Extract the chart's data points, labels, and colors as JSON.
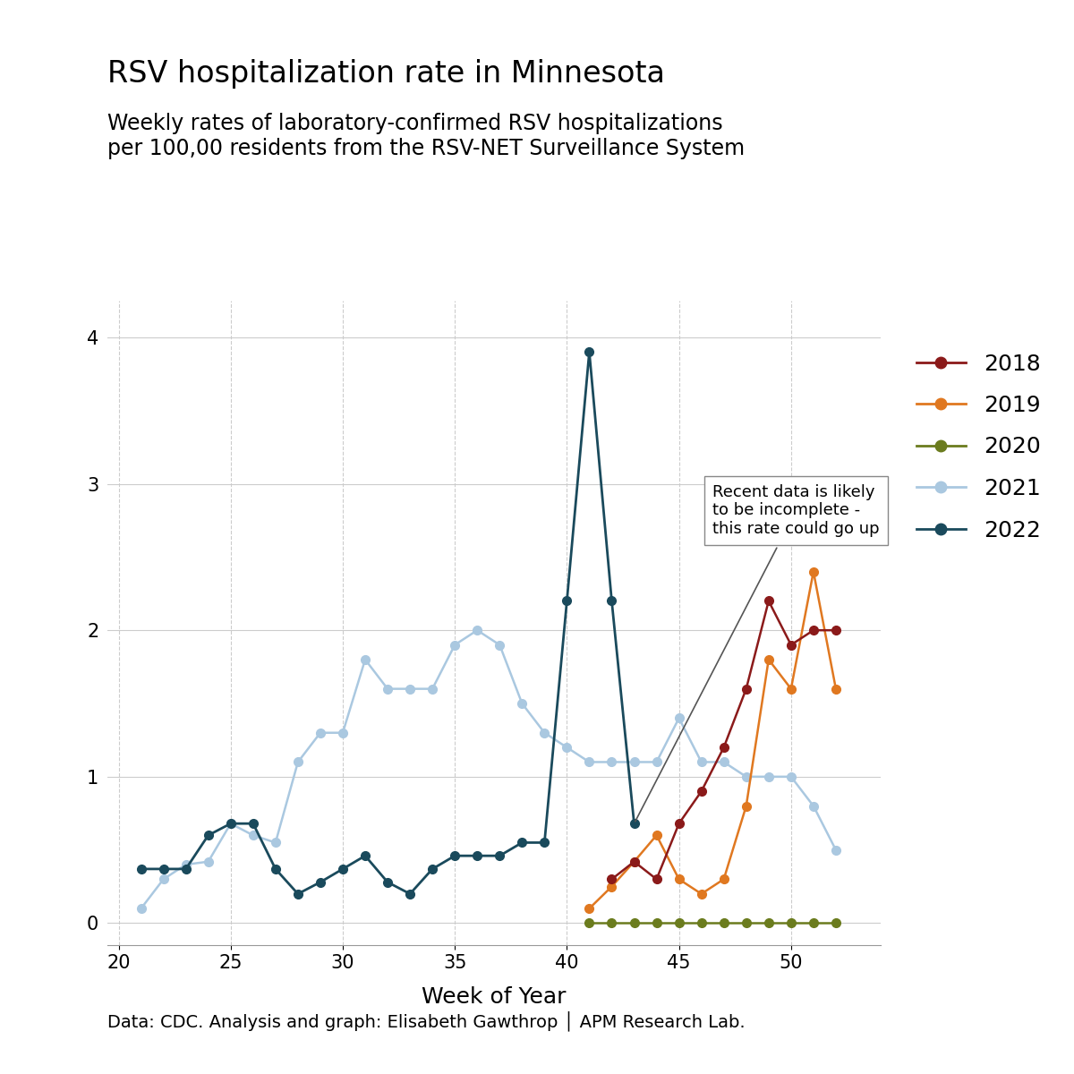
{
  "title": "RSV hospitalization rate in Minnesota",
  "subtitle": "Weekly rates of laboratory-confirmed RSV hospitalizations\nper 100,00 residents from the RSV-NET Surveillance System",
  "xlabel": "Week of Year",
  "footnote": "Data: CDC. Analysis and graph: Elisabeth Gawthrop │ APM Research Lab.",
  "annotation_text": "Recent data is likely\nto be incomplete -\nthis rate could go up",
  "ylim": [
    -0.15,
    4.25
  ],
  "xlim": [
    19.5,
    54
  ],
  "yticks": [
    0,
    1,
    2,
    3,
    4
  ],
  "xticks": [
    20,
    25,
    30,
    35,
    40,
    45,
    50
  ],
  "series": {
    "2022": {
      "weeks": [
        21,
        22,
        23,
        24,
        25,
        26,
        27,
        28,
        29,
        30,
        31,
        32,
        33,
        34,
        35,
        36,
        37,
        38,
        39,
        40,
        41,
        42,
        43
      ],
      "rates": [
        0.37,
        0.37,
        0.37,
        0.6,
        0.68,
        0.68,
        0.37,
        0.2,
        0.28,
        0.37,
        0.46,
        0.28,
        0.2,
        0.37,
        0.46,
        0.46,
        0.46,
        0.55,
        0.55,
        2.2,
        3.9,
        2.2,
        0.68
      ],
      "color": "#1a4a5c",
      "linewidth": 2.0,
      "markersize": 7
    },
    "2021": {
      "weeks": [
        21,
        22,
        23,
        24,
        25,
        26,
        27,
        28,
        29,
        30,
        31,
        32,
        33,
        34,
        35,
        36,
        37,
        38,
        39,
        40,
        41,
        42,
        43,
        44,
        45,
        46,
        47,
        48,
        49,
        50,
        51,
        52
      ],
      "rates": [
        0.1,
        0.3,
        0.4,
        0.42,
        0.68,
        0.6,
        0.55,
        1.1,
        1.3,
        1.3,
        1.8,
        1.6,
        1.6,
        1.6,
        1.9,
        2.0,
        1.9,
        1.5,
        1.3,
        1.2,
        1.1,
        1.1,
        1.1,
        1.1,
        1.4,
        1.1,
        1.1,
        1.0,
        1.0,
        1.0,
        0.8,
        0.5
      ],
      "color": "#aac8e0",
      "linewidth": 1.8,
      "markersize": 7
    },
    "2020": {
      "weeks": [
        41,
        42,
        43,
        44,
        45,
        46,
        47,
        48,
        49,
        50,
        51,
        52
      ],
      "rates": [
        0.0,
        0.0,
        0.0,
        0.0,
        0.0,
        0.0,
        0.0,
        0.0,
        0.0,
        0.0,
        0.0,
        0.0
      ],
      "color": "#6b7c1e",
      "linewidth": 1.8,
      "markersize": 7
    },
    "2019": {
      "weeks": [
        41,
        42,
        43,
        44,
        45,
        46,
        47,
        48,
        49,
        50,
        51,
        52
      ],
      "rates": [
        0.1,
        0.25,
        0.42,
        0.6,
        0.3,
        0.2,
        0.3,
        0.8,
        1.8,
        1.6,
        2.4,
        1.6
      ],
      "color": "#e07820",
      "linewidth": 1.8,
      "markersize": 7
    },
    "2018": {
      "weeks": [
        42,
        43,
        44,
        45,
        46,
        47,
        48,
        49,
        50,
        51,
        52
      ],
      "rates": [
        0.3,
        0.42,
        0.3,
        0.68,
        0.9,
        1.2,
        1.6,
        2.2,
        1.9,
        2.0,
        2.0
      ],
      "color": "#8b1a1a",
      "linewidth": 1.8,
      "markersize": 7
    }
  },
  "background_color": "#ffffff",
  "grid_color": "#cccccc",
  "title_fontsize": 24,
  "subtitle_fontsize": 17,
  "axis_label_fontsize": 18,
  "tick_fontsize": 15,
  "legend_fontsize": 18,
  "footnote_fontsize": 14
}
